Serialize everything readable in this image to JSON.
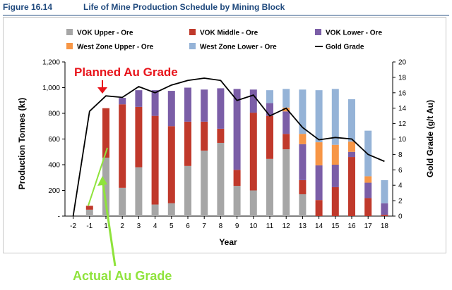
{
  "header": {
    "figure_number": "Figure 16.14",
    "title": "Life of Mine Production Schedule by Mining Block"
  },
  "annotations": {
    "planned": "Planned Au Grade",
    "actual": "Actual Au Grade",
    "planned_color": "#e8141b",
    "actual_color": "#8fe33c"
  },
  "chart_data": {
    "type": "bar",
    "stacked": true,
    "xlabel": "Year",
    "ylabel": "Production Tonnes (kt)",
    "y2label": "Gold Grade (g/t Au)",
    "categories": [
      "-2",
      "-1",
      "1",
      "2",
      "3",
      "4",
      "5",
      "6",
      "7",
      "8",
      "9",
      "10",
      "11",
      "12",
      "13",
      "14",
      "15",
      "16",
      "17",
      "18"
    ],
    "ylim": [
      0,
      1200
    ],
    "yticks": [
      0,
      200,
      400,
      600,
      800,
      1000,
      1200
    ],
    "ytick_labels": [
      "-",
      "200",
      "400",
      "600",
      "800",
      "1,000",
      "1,200"
    ],
    "y2lim": [
      0,
      20
    ],
    "y2ticks": [
      0,
      2,
      4,
      6,
      8,
      10,
      12,
      14,
      16,
      18,
      20
    ],
    "legend_position": "top",
    "grid": false,
    "series": [
      {
        "name": "VOK Upper - Ore",
        "color": "#a6a6a6",
        "values": [
          0,
          50,
          455,
          220,
          380,
          90,
          100,
          390,
          510,
          570,
          235,
          200,
          445,
          520,
          170,
          0,
          0,
          0,
          0,
          0
        ]
      },
      {
        "name": "VOK Middle - Ore",
        "color": "#c0392b",
        "values": [
          0,
          30,
          385,
          650,
          470,
          690,
          600,
          345,
          225,
          110,
          125,
          605,
          335,
          120,
          110,
          125,
          225,
          460,
          140,
          10
        ]
      },
      {
        "name": "VOK Lower - Ore",
        "color": "#7b5ea7",
        "values": [
          0,
          0,
          0,
          50,
          130,
          200,
          275,
          265,
          250,
          315,
          630,
          180,
          100,
          175,
          280,
          270,
          175,
          40,
          120,
          90
        ]
      },
      {
        "name": "West Zone Upper - Ore",
        "color": "#f79646",
        "values": [
          0,
          0,
          0,
          0,
          0,
          0,
          0,
          0,
          0,
          0,
          0,
          0,
          0,
          30,
          80,
          180,
          155,
          80,
          50,
          0
        ]
      },
      {
        "name": "West Zone Lower - Ore",
        "color": "#95b3d7",
        "values": [
          0,
          0,
          0,
          0,
          0,
          0,
          0,
          0,
          0,
          0,
          0,
          0,
          100,
          145,
          345,
          405,
          435,
          330,
          355,
          180
        ]
      },
      {
        "name": "Gold Grade",
        "type": "line",
        "axis": "secondary",
        "color": "#000000",
        "values": [
          0,
          13.6,
          15.6,
          15.4,
          16.8,
          16.0,
          17.0,
          17.6,
          17.9,
          17.6,
          15.0,
          15.7,
          13.0,
          14.0,
          11.5,
          9.9,
          10.2,
          10.0,
          8.0,
          7.1
        ]
      }
    ]
  }
}
